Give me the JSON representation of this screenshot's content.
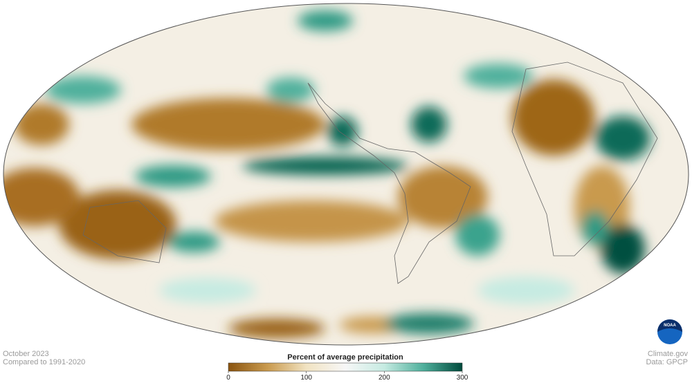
{
  "period": "October 2023",
  "baseline": "Compared to 1991-2020",
  "legend": {
    "title": "Percent of average precipitation",
    "lim": [
      0,
      300
    ],
    "ticks": [
      0,
      100,
      200,
      300
    ],
    "colors": [
      "#8a5410",
      "#c99a4e",
      "#f1e3c2",
      "#f7f7f7",
      "#c6ebe2",
      "#4fb09c",
      "#004a3c"
    ]
  },
  "logo": "NOAA",
  "credit": "Climate.gov",
  "source": "Data: GPCP"
}
